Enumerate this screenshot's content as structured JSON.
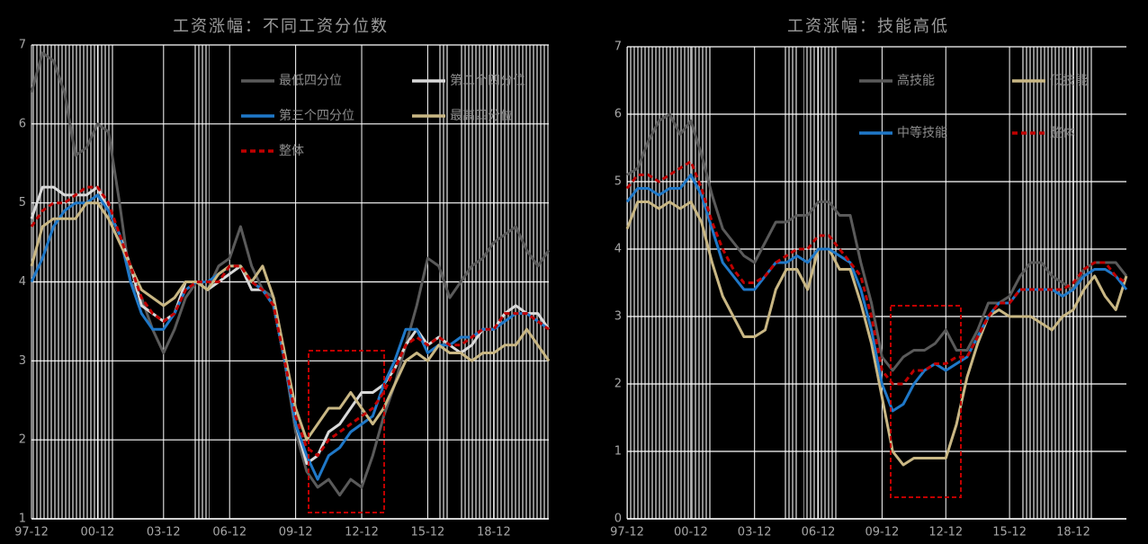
{
  "chart_data": [
    {
      "type": "line",
      "title": "工资涨幅：不同工资分位数",
      "categories": [
        "97-12",
        null,
        null,
        null,
        null,
        null,
        "00-12",
        null,
        null,
        null,
        null,
        null,
        "03-12",
        null,
        null,
        null,
        null,
        null,
        "06-12",
        null,
        null,
        null,
        null,
        null,
        "09-12",
        null,
        null,
        null,
        null,
        null,
        "12-12",
        null,
        null,
        null,
        null,
        null,
        "15-12",
        null,
        null,
        null,
        null,
        null,
        "18-12",
        null,
        null,
        null,
        null,
        null
      ],
      "ylim": [
        1,
        7
      ],
      "yticks": [
        1,
        2,
        3,
        4,
        5,
        6,
        7
      ],
      "grid": true,
      "series": [
        {
          "name": "最低四分位",
          "color": "#5a5a5a",
          "values": [
            6.4,
            6.9,
            6.8,
            6.4,
            5.6,
            5.7,
            6.0,
            5.9,
            5.0,
            4.0,
            3.8,
            3.4,
            3.1,
            3.4,
            3.8,
            4.0,
            3.9,
            4.2,
            4.3,
            4.7,
            4.2,
            3.9,
            3.8,
            3.0,
            2.1,
            1.6,
            1.4,
            1.5,
            1.3,
            1.5,
            1.4,
            1.8,
            2.3,
            2.7,
            3.2,
            3.7,
            4.3,
            4.2,
            3.8,
            4.0,
            4.2,
            4.3,
            4.5,
            4.6,
            4.7,
            4.4,
            4.2,
            4.4
          ]
        },
        {
          "name": "第二个四分位",
          "color": "#d9d9d9",
          "values": [
            4.8,
            5.2,
            5.2,
            5.1,
            5.1,
            5.1,
            5.2,
            4.9,
            4.6,
            4.2,
            3.7,
            3.6,
            3.5,
            3.6,
            4.0,
            4.0,
            3.9,
            4.0,
            4.1,
            4.2,
            3.9,
            3.9,
            3.7,
            3.0,
            2.2,
            1.7,
            1.8,
            2.1,
            2.2,
            2.4,
            2.6,
            2.6,
            2.7,
            2.9,
            3.2,
            3.4,
            3.2,
            3.3,
            3.2,
            3.1,
            3.2,
            3.4,
            3.4,
            3.6,
            3.7,
            3.6,
            3.6,
            3.4
          ]
        },
        {
          "name": "第三个四分位",
          "color": "#1f78c8",
          "values": [
            4.0,
            4.3,
            4.7,
            4.9,
            5.0,
            5.0,
            5.1,
            4.9,
            4.6,
            4.0,
            3.6,
            3.4,
            3.4,
            3.6,
            3.9,
            4.0,
            4.0,
            4.1,
            4.2,
            4.2,
            4.0,
            3.9,
            3.7,
            3.0,
            2.2,
            1.8,
            1.5,
            1.8,
            1.9,
            2.1,
            2.2,
            2.3,
            2.7,
            3.0,
            3.4,
            3.4,
            3.1,
            3.2,
            3.2,
            3.3,
            3.3,
            3.4,
            3.4,
            3.5,
            3.6,
            3.6,
            3.5,
            3.4
          ]
        },
        {
          "name": "最高四分位",
          "color": "#c9b784",
          "values": [
            4.2,
            4.7,
            4.8,
            4.8,
            4.8,
            5.0,
            5.0,
            4.8,
            4.5,
            4.2,
            3.9,
            3.8,
            3.7,
            3.8,
            4.0,
            4.0,
            3.9,
            4.1,
            4.2,
            4.2,
            4.0,
            4.2,
            3.8,
            3.1,
            2.4,
            2.0,
            2.2,
            2.4,
            2.4,
            2.6,
            2.4,
            2.2,
            2.4,
            2.7,
            3.0,
            3.1,
            3.0,
            3.2,
            3.1,
            3.1,
            3.0,
            3.1,
            3.1,
            3.2,
            3.2,
            3.4,
            3.2,
            3.0
          ]
        },
        {
          "name": "整体",
          "color": "#c00000",
          "line_style": "dashed",
          "values": [
            4.7,
            4.9,
            5.0,
            5.0,
            5.1,
            5.2,
            5.2,
            5.0,
            4.6,
            4.2,
            3.8,
            3.6,
            3.5,
            3.6,
            3.9,
            4.0,
            4.0,
            4.0,
            4.2,
            4.2,
            4.0,
            3.9,
            3.7,
            3.0,
            2.3,
            1.9,
            1.8,
            2.0,
            2.1,
            2.2,
            2.3,
            2.4,
            2.6,
            2.9,
            3.2,
            3.3,
            3.2,
            3.3,
            3.2,
            3.2,
            3.3,
            3.4,
            3.4,
            3.6,
            3.6,
            3.6,
            3.5,
            3.4
          ]
        }
      ]
    },
    {
      "type": "line",
      "title": "工资涨幅：技能高低",
      "categories": [
        "97-12",
        null,
        null,
        null,
        null,
        null,
        "00-12",
        null,
        null,
        null,
        null,
        null,
        "03-12",
        null,
        null,
        null,
        null,
        null,
        "06-12",
        null,
        null,
        null,
        null,
        null,
        "09-12",
        null,
        null,
        null,
        null,
        null,
        "12-12",
        null,
        null,
        null,
        null,
        null,
        "15-12",
        null,
        null,
        null,
        null,
        null,
        "18-12",
        null,
        null,
        null,
        null,
        null
      ],
      "ylim": [
        0,
        7
      ],
      "yticks": [
        0,
        1,
        2,
        3,
        4,
        5,
        6,
        7
      ],
      "grid": true,
      "series": [
        {
          "name": "高技能",
          "color": "#5a5a5a",
          "values": [
            5.1,
            5.2,
            5.6,
            5.9,
            6.0,
            5.7,
            5.9,
            5.4,
            4.8,
            4.3,
            4.1,
            3.9,
            3.8,
            4.1,
            4.4,
            4.4,
            4.5,
            4.5,
            4.7,
            4.7,
            4.5,
            4.5,
            3.8,
            3.2,
            2.4,
            2.2,
            2.4,
            2.5,
            2.5,
            2.6,
            2.8,
            2.5,
            2.5,
            2.8,
            3.2,
            3.2,
            3.3,
            3.6,
            3.8,
            3.8,
            3.6,
            3.5,
            3.4,
            3.7,
            3.8,
            3.8,
            3.8,
            3.6
          ]
        },
        {
          "name": "低技能",
          "color": "#c9b784",
          "values": [
            4.3,
            4.7,
            4.7,
            4.6,
            4.7,
            4.6,
            4.7,
            4.4,
            3.8,
            3.3,
            3.0,
            2.7,
            2.7,
            2.8,
            3.4,
            3.7,
            3.7,
            3.4,
            4.0,
            4.0,
            3.7,
            3.7,
            3.2,
            2.6,
            1.8,
            1.0,
            0.8,
            0.9,
            0.9,
            0.9,
            0.9,
            1.4,
            2.1,
            2.6,
            3.0,
            3.1,
            3.0,
            3.0,
            3.0,
            2.9,
            2.8,
            3.0,
            3.1,
            3.4,
            3.6,
            3.3,
            3.1,
            3.6
          ]
        },
        {
          "name": "中等技能",
          "color": "#1f78c8",
          "values": [
            4.7,
            4.9,
            4.9,
            4.8,
            4.9,
            4.9,
            5.1,
            4.8,
            4.3,
            3.8,
            3.6,
            3.4,
            3.4,
            3.6,
            3.8,
            3.8,
            3.9,
            3.8,
            4.0,
            4.0,
            3.9,
            3.8,
            3.4,
            2.8,
            2.0,
            1.6,
            1.7,
            2.0,
            2.2,
            2.3,
            2.2,
            2.3,
            2.4,
            2.7,
            3.0,
            3.2,
            3.2,
            3.4,
            3.4,
            3.4,
            3.4,
            3.3,
            3.4,
            3.6,
            3.7,
            3.7,
            3.6,
            3.4
          ]
        },
        {
          "name": "整体",
          "color": "#c00000",
          "line_style": "dashed",
          "values": [
            4.9,
            5.1,
            5.1,
            5.0,
            5.1,
            5.2,
            5.3,
            4.9,
            4.4,
            4.0,
            3.7,
            3.5,
            3.5,
            3.6,
            3.8,
            3.9,
            4.0,
            4.0,
            4.2,
            4.2,
            4.0,
            3.8,
            3.6,
            3.0,
            2.2,
            2.0,
            2.0,
            2.2,
            2.2,
            2.3,
            2.3,
            2.4,
            2.4,
            2.7,
            3.0,
            3.2,
            3.2,
            3.4,
            3.4,
            3.4,
            3.4,
            3.4,
            3.5,
            3.7,
            3.8,
            3.8,
            3.6,
            3.5
          ]
        }
      ]
    }
  ]
}
